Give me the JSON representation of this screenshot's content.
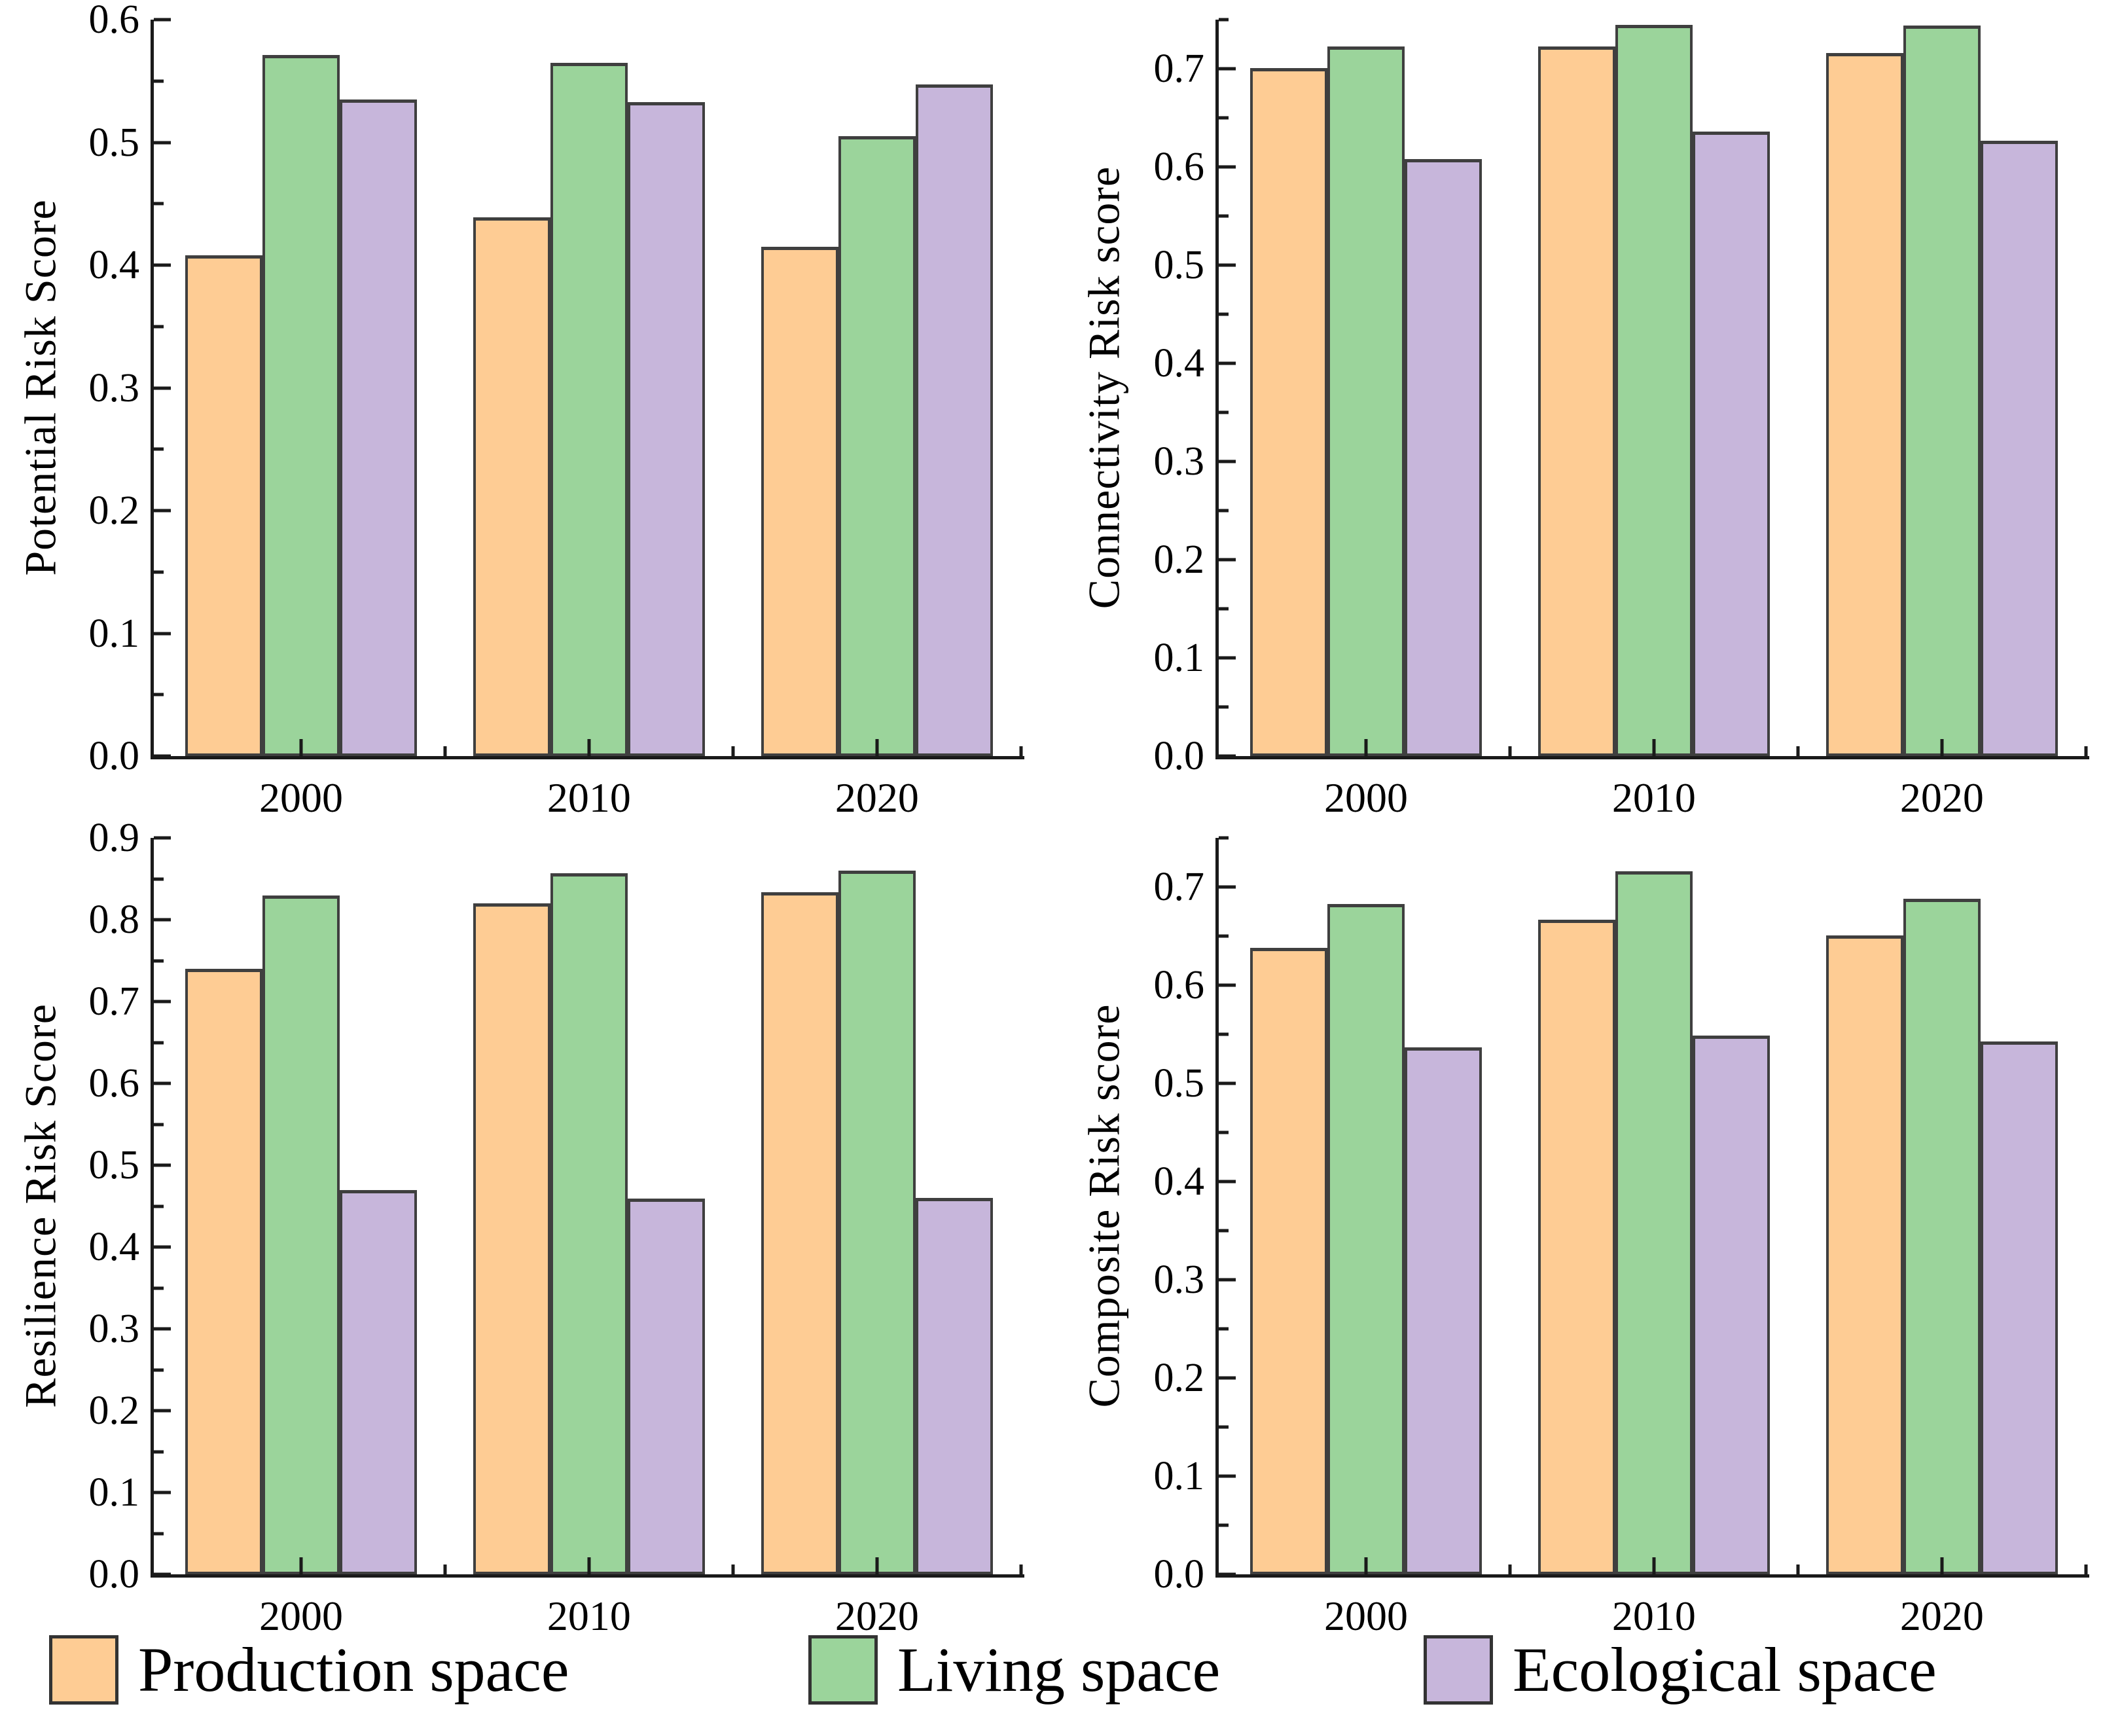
{
  "colors": {
    "production": "#FECC94",
    "living": "#9BD49B",
    "ecological": "#C7B6DB",
    "bar_border": "#3f3f3f",
    "axis": "#1a1a1a",
    "text": "#000000"
  },
  "legend": {
    "position": "bottom",
    "items": [
      {
        "label": "Production space",
        "color_key": "production",
        "swatch": "orange-rectangle"
      },
      {
        "label": "Living space",
        "color_key": "living",
        "swatch": "green-rectangle"
      },
      {
        "label": "Ecological space",
        "color_key": "ecological",
        "swatch": "purple-rectangle"
      }
    ]
  },
  "chart_data": [
    {
      "type": "bar",
      "position": "top-left",
      "title": "",
      "xlabel": "",
      "ylabel": "Potential Risk Score",
      "categories": [
        "2000",
        "2010",
        "2020"
      ],
      "ylim": [
        0,
        0.6
      ],
      "ytick_step": 0.1,
      "ytick_label_max": 0.6,
      "minor_tick_step": 0.05,
      "grid": false,
      "series": [
        {
          "name": "Production space",
          "color_key": "production",
          "values": [
            0.408,
            0.439,
            0.415
          ]
        },
        {
          "name": "Living space",
          "color_key": "living",
          "values": [
            0.571,
            0.565,
            0.505
          ]
        },
        {
          "name": "Ecological space",
          "color_key": "ecological",
          "values": [
            0.535,
            0.533,
            0.547
          ]
        }
      ]
    },
    {
      "type": "bar",
      "position": "top-right",
      "title": "",
      "xlabel": "",
      "ylabel": "Connectivity Risk score",
      "categories": [
        "2000",
        "2010",
        "2020"
      ],
      "ylim": [
        0,
        0.75
      ],
      "ytick_step": 0.1,
      "ytick_label_max": 0.7,
      "minor_tick_step": 0.05,
      "grid": false,
      "series": [
        {
          "name": "Production space",
          "color_key": "production",
          "values": [
            0.701,
            0.723,
            0.716
          ]
        },
        {
          "name": "Living space",
          "color_key": "living",
          "values": [
            0.723,
            0.745,
            0.744
          ]
        },
        {
          "name": "Ecological space",
          "color_key": "ecological",
          "values": [
            0.608,
            0.636,
            0.627
          ]
        }
      ]
    },
    {
      "type": "bar",
      "position": "bottom-left",
      "title": "",
      "xlabel": "",
      "ylabel": "Resilience Risk Score",
      "categories": [
        "2000",
        "2010",
        "2020"
      ],
      "ylim": [
        0,
        0.9
      ],
      "ytick_step": 0.1,
      "ytick_label_max": 0.9,
      "minor_tick_step": 0.05,
      "grid": false,
      "series": [
        {
          "name": "Production space",
          "color_key": "production",
          "values": [
            0.74,
            0.82,
            0.834
          ]
        },
        {
          "name": "Living space",
          "color_key": "living",
          "values": [
            0.83,
            0.857,
            0.86
          ]
        },
        {
          "name": "Ecological space",
          "color_key": "ecological",
          "values": [
            0.47,
            0.459,
            0.46
          ]
        }
      ]
    },
    {
      "type": "bar",
      "position": "bottom-right",
      "title": "",
      "xlabel": "",
      "ylabel": "Composite Risk score",
      "categories": [
        "2000",
        "2010",
        "2020"
      ],
      "ylim": [
        0,
        0.75
      ],
      "ytick_step": 0.1,
      "ytick_label_max": 0.7,
      "minor_tick_step": 0.05,
      "grid": false,
      "series": [
        {
          "name": "Production space",
          "color_key": "production",
          "values": [
            0.638,
            0.667,
            0.651
          ]
        },
        {
          "name": "Living space",
          "color_key": "living",
          "values": [
            0.683,
            0.716,
            0.688
          ]
        },
        {
          "name": "Ecological space",
          "color_key": "ecological",
          "values": [
            0.537,
            0.549,
            0.543
          ]
        }
      ]
    }
  ],
  "bar_layout": {
    "left_margin_pct": 3.61,
    "bar_width_pct": 8.87,
    "group_gap_pct": 6.47
  }
}
